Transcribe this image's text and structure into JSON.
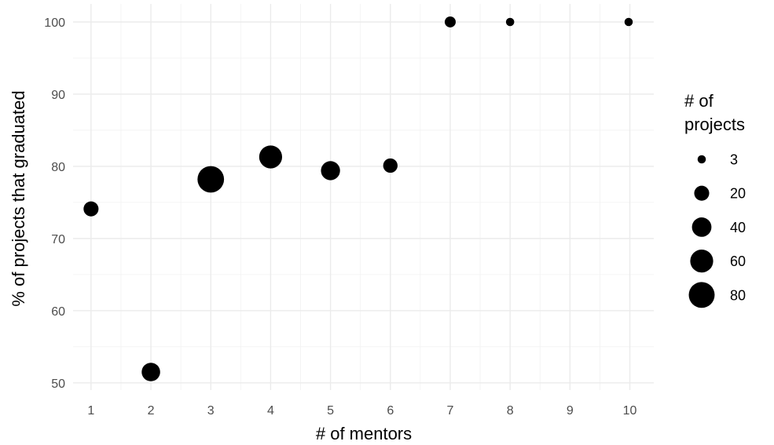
{
  "chart_data": {
    "type": "scatter",
    "title": "",
    "xlabel": "# of mentors",
    "ylabel": "% of projects that graduated",
    "xlim": [
      0.7,
      10.4
    ],
    "ylim": [
      49,
      102.5
    ],
    "x_ticks": [
      1,
      2,
      3,
      4,
      5,
      6,
      7,
      8,
      9,
      10
    ],
    "y_ticks": [
      50,
      60,
      70,
      80,
      90,
      100
    ],
    "grid": true,
    "point_color": "#000000",
    "points": [
      {
        "x": 1,
        "y": 74.1,
        "size": 20
      },
      {
        "x": 2,
        "y": 51.5,
        "size": 35
      },
      {
        "x": 3,
        "y": 78.2,
        "size": 85
      },
      {
        "x": 4,
        "y": 81.3,
        "size": 60
      },
      {
        "x": 5,
        "y": 79.4,
        "size": 38
      },
      {
        "x": 6,
        "y": 80.1,
        "size": 18
      },
      {
        "x": 7,
        "y": 100,
        "size": 8
      },
      {
        "x": 8,
        "y": 100,
        "size": 3
      },
      {
        "x": 9.98,
        "y": 100,
        "size": 3
      }
    ],
    "legend": {
      "title_lines": [
        "# of",
        "projects"
      ],
      "position": "right",
      "entries": [
        {
          "label": "3",
          "size": 3
        },
        {
          "label": "20",
          "size": 20
        },
        {
          "label": "40",
          "size": 40
        },
        {
          "label": "60",
          "size": 60
        },
        {
          "label": "80",
          "size": 80
        }
      ]
    }
  }
}
